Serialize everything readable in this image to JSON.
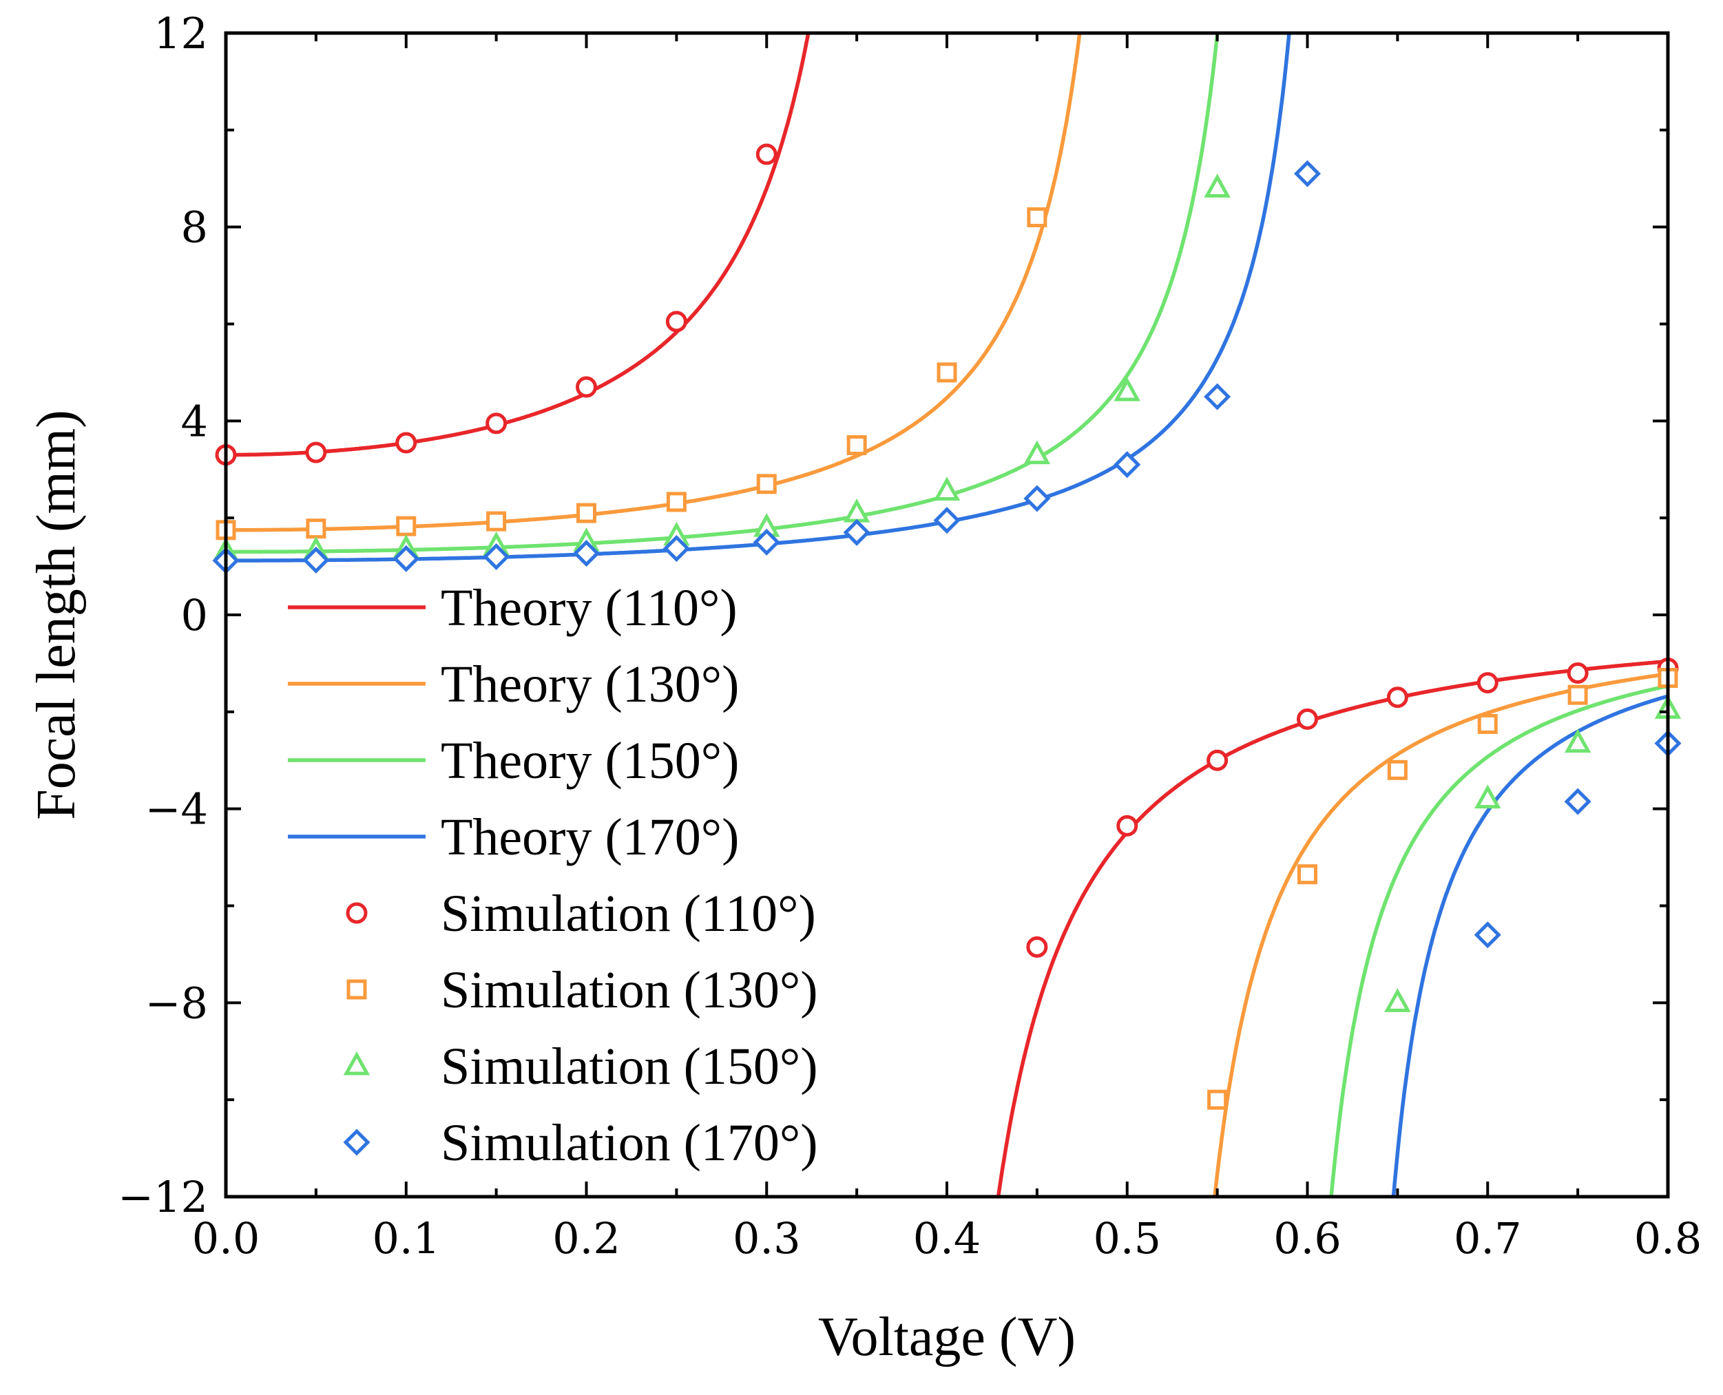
{
  "chart_data": {
    "type": "line",
    "title": "",
    "xlabel": "Voltage (V)",
    "ylabel": "Focal length (mm)",
    "xlim": [
      0.0,
      0.8
    ],
    "ylim": [
      -12,
      12
    ],
    "x_ticks": [
      0.0,
      0.1,
      0.2,
      0.3,
      0.4,
      0.5,
      0.6,
      0.7,
      0.8
    ],
    "x_tick_labels": [
      "0.0",
      "0.1",
      "0.2",
      "0.3",
      "0.4",
      "0.5",
      "0.6",
      "0.7",
      "0.8"
    ],
    "y_ticks": [
      -12,
      -8,
      -4,
      0,
      4,
      8,
      12
    ],
    "y_tick_labels": [
      "−12",
      "−8",
      "−4",
      "0",
      "4",
      "8",
      "12"
    ],
    "legend_position": "left",
    "grid": false,
    "series": [
      {
        "name": "Theory (110°)",
        "kind": "line",
        "color": "#e8262a",
        "f0": 3.3,
        "vc": 0.3795
      },
      {
        "name": "Theory (130°)",
        "kind": "line",
        "color": "#fa9a3c",
        "f0": 1.75,
        "vc": 0.5125
      },
      {
        "name": "Theory (150°)",
        "kind": "line",
        "color": "#6fe36f",
        "f0": 1.3,
        "vc": 0.5825
      },
      {
        "name": "Theory (170°)",
        "kind": "line",
        "color": "#2f74e0",
        "f0": 1.12,
        "vc": 0.6195
      },
      {
        "name": "Simulation (110°)",
        "kind": "marker",
        "marker": "circle",
        "color": "#e8262a",
        "x": [
          0.0,
          0.05,
          0.1,
          0.15,
          0.2,
          0.25,
          0.3,
          0.45,
          0.5,
          0.55,
          0.6,
          0.65,
          0.7,
          0.75,
          0.8
        ],
        "y": [
          3.3,
          3.35,
          3.55,
          3.95,
          4.7,
          6.05,
          9.5,
          -6.85,
          -4.35,
          -3.0,
          -2.15,
          -1.7,
          -1.4,
          -1.2,
          -1.1
        ]
      },
      {
        "name": "Simulation (130°)",
        "kind": "marker",
        "marker": "square",
        "color": "#fa9a3c",
        "x": [
          0.0,
          0.05,
          0.1,
          0.15,
          0.2,
          0.25,
          0.3,
          0.35,
          0.4,
          0.45,
          0.55,
          0.6,
          0.65,
          0.7,
          0.75,
          0.8
        ],
        "y": [
          1.75,
          1.78,
          1.83,
          1.93,
          2.1,
          2.33,
          2.7,
          3.5,
          5.0,
          8.2,
          -10.0,
          -5.35,
          -3.2,
          -2.25,
          -1.65,
          -1.3
        ]
      },
      {
        "name": "Simulation (150°)",
        "kind": "marker",
        "marker": "triangle",
        "color": "#6fe36f",
        "x": [
          0.0,
          0.05,
          0.1,
          0.15,
          0.2,
          0.25,
          0.3,
          0.35,
          0.4,
          0.45,
          0.5,
          0.55,
          0.65,
          0.7,
          0.75,
          0.8
        ],
        "y": [
          1.3,
          1.32,
          1.36,
          1.42,
          1.5,
          1.62,
          1.8,
          2.1,
          2.55,
          3.3,
          4.6,
          8.8,
          -8.0,
          -3.8,
          -2.65,
          -1.95
        ]
      },
      {
        "name": "Simulation (170°)",
        "kind": "marker",
        "marker": "diamond",
        "color": "#2f74e0",
        "x": [
          0.0,
          0.05,
          0.1,
          0.15,
          0.2,
          0.25,
          0.3,
          0.35,
          0.4,
          0.45,
          0.5,
          0.55,
          0.6,
          0.7,
          0.75,
          0.8
        ],
        "y": [
          1.12,
          1.13,
          1.16,
          1.2,
          1.27,
          1.37,
          1.5,
          1.7,
          1.95,
          2.4,
          3.1,
          4.5,
          9.1,
          -6.6,
          -3.85,
          -2.65
        ]
      }
    ]
  }
}
